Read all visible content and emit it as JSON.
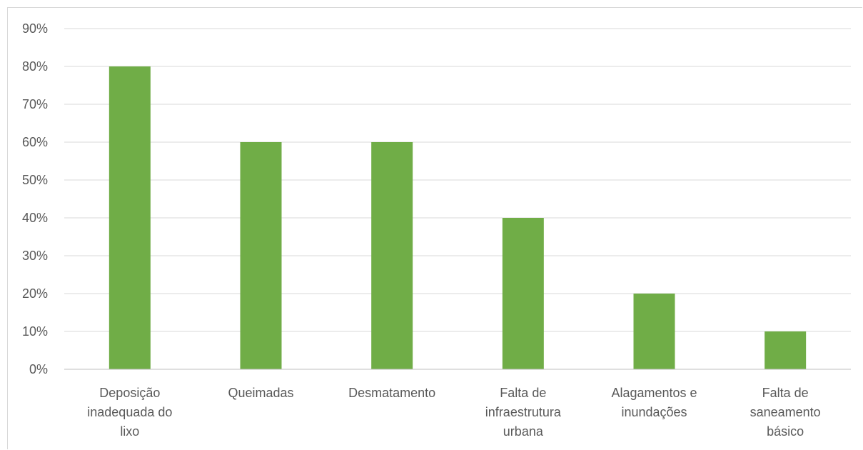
{
  "chart_data": {
    "type": "bar",
    "title": "",
    "xlabel": "",
    "ylabel": "",
    "categories": [
      [
        "Deposição",
        "inadequada do",
        "lixo"
      ],
      [
        "Queimadas"
      ],
      [
        "Desmatamento"
      ],
      [
        "Falta de",
        "infraestrutura",
        "urbana"
      ],
      [
        "Alagamentos e",
        "inundações"
      ],
      [
        "Falta de",
        "saneamento",
        "básico"
      ]
    ],
    "values": [
      80,
      60,
      60,
      40,
      20,
      10
    ],
    "ylim": [
      0,
      90
    ],
    "yticks": [
      "0%",
      "10%",
      "20%",
      "30%",
      "40%",
      "50%",
      "60%",
      "70%",
      "80%",
      "90%"
    ],
    "grid": true,
    "legend": "none",
    "colors": {
      "bar": "#70ad47",
      "grid": "#d9d9d9",
      "axis": "#bfbfbf",
      "text": "#595959"
    }
  }
}
